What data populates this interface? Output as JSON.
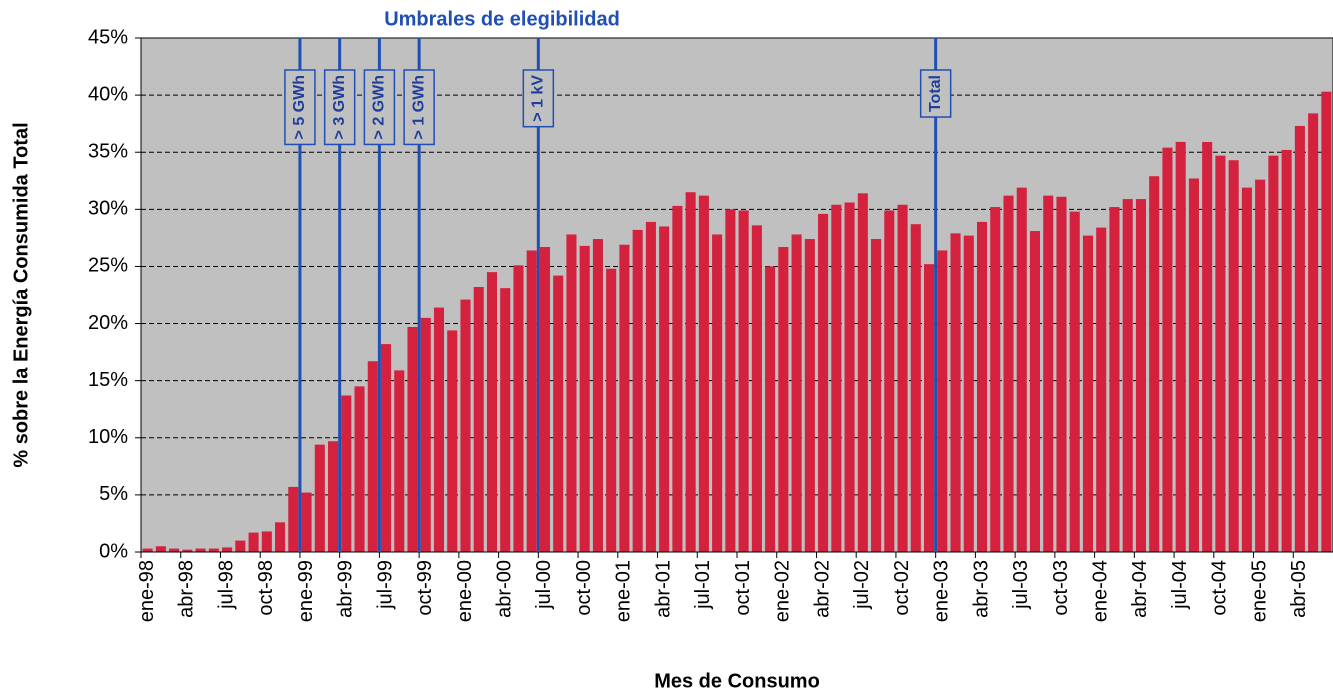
{
  "chart_data": {
    "type": "bar",
    "title": "Umbrales de elegibilidad",
    "y_label": "% sobre la Energía Consumida Total",
    "x_label": "Mes de Consumo",
    "color": "#d4213d",
    "grid": true,
    "categories": [
      "ene-98",
      null,
      null,
      "abr-98",
      null,
      null,
      "jul-98",
      null,
      null,
      "oct-98",
      null,
      null,
      "ene-99",
      null,
      null,
      "abr-99",
      null,
      null,
      "jul-99",
      null,
      null,
      "oct-99",
      null,
      null,
      "ene-00",
      null,
      null,
      "abr-00",
      null,
      null,
      "jul-00",
      null,
      null,
      "oct-00",
      null,
      null,
      "ene-01",
      null,
      null,
      "abr-01",
      null,
      null,
      "jul-01",
      null,
      null,
      "oct-01",
      null,
      null,
      "ene-02",
      null,
      null,
      "abr-02",
      null,
      null,
      "jul-02",
      null,
      null,
      "oct-02",
      null,
      null,
      "ene-03",
      null,
      null,
      "abr-03",
      null,
      null,
      "jul-03",
      null,
      null,
      "oct-03",
      null,
      null,
      "ene-04",
      null,
      null,
      "abr-04",
      null,
      null,
      "jul-04",
      null,
      null,
      "oct-04",
      null,
      null,
      "ene-05",
      null,
      null,
      "abr-05",
      null,
      null
    ],
    "values": [
      0.3,
      0.5,
      0.3,
      0.2,
      0.3,
      0.3,
      0.4,
      1.0,
      1.7,
      1.8,
      2.6,
      5.7,
      5.2,
      9.4,
      9.7,
      13.7,
      14.5,
      16.7,
      18.2,
      15.9,
      19.7,
      20.5,
      21.4,
      19.4,
      22.1,
      23.2,
      24.5,
      23.1,
      25.1,
      26.4,
      26.7,
      24.2,
      27.8,
      26.8,
      27.4,
      24.8,
      26.9,
      28.2,
      28.9,
      28.5,
      30.3,
      31.5,
      31.2,
      27.8,
      30.0,
      29.9,
      28.6,
      25.0,
      26.7,
      27.8,
      27.4,
      29.6,
      30.4,
      30.6,
      31.4,
      27.4,
      29.9,
      30.4,
      28.7,
      25.2,
      26.4,
      27.9,
      27.7,
      28.9,
      30.2,
      31.2,
      31.9,
      28.1,
      31.2,
      31.1,
      29.8,
      27.7,
      28.4,
      30.2,
      30.9,
      30.9,
      32.9,
      35.4,
      35.9,
      32.7,
      35.9,
      34.7,
      34.3,
      31.9,
      32.6,
      34.7,
      35.2,
      37.3,
      38.4,
      40.3
    ],
    "ylim": [
      0,
      45
    ],
    "yticks": [
      {
        "value": 0,
        "label": "0%"
      },
      {
        "value": 5,
        "label": "5%"
      },
      {
        "value": 10,
        "label": "10%"
      },
      {
        "value": 15,
        "label": "15%"
      },
      {
        "value": 20,
        "label": "20%"
      },
      {
        "value": 25,
        "label": "25%"
      },
      {
        "value": 30,
        "label": "30%"
      },
      {
        "value": 35,
        "label": "35%"
      },
      {
        "value": 40,
        "label": "40%"
      },
      {
        "value": 45,
        "label": "45%"
      }
    ],
    "annotations": [
      {
        "label": "> 5 GWh",
        "x": "ene-99"
      },
      {
        "label": "> 3 GWh",
        "x": "abr-99"
      },
      {
        "label": "> 2 GWh",
        "x": "jul-99"
      },
      {
        "label": "> 1 GWh",
        "x": "oct-99"
      },
      {
        "label": "> 1 kV",
        "x": "jul-00"
      },
      {
        "label": "Total",
        "x": "ene-03"
      }
    ]
  }
}
